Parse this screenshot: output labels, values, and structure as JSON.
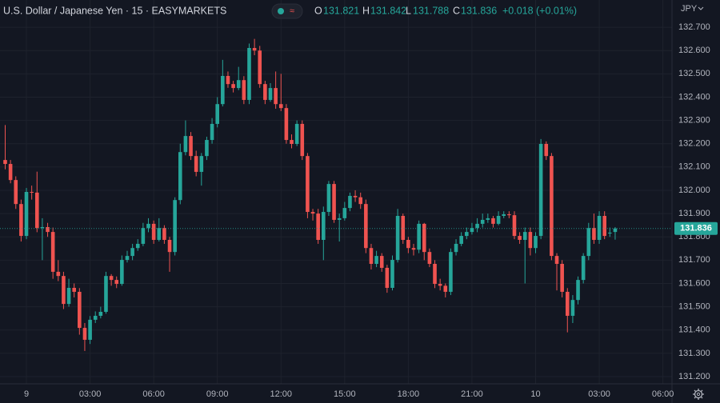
{
  "header": {
    "symbol": "U.S. Dollar / Japanese Yen · 15 · EASYMARKETS",
    "o_label": "O",
    "h_label": "H",
    "l_label": "L",
    "c_label": "C",
    "change": "+0.018",
    "change_pct": "(+0.01%)"
  },
  "chart_data": {
    "type": "candlestick",
    "currency": "JPY",
    "categories": [
      null,
      null,
      null,
      null,
      "9",
      null,
      null,
      null,
      null,
      null,
      null,
      null,
      null,
      null,
      null,
      null,
      "03:00",
      null,
      null,
      null,
      null,
      null,
      null,
      null,
      null,
      null,
      null,
      null,
      "06:00",
      null,
      null,
      null,
      null,
      null,
      null,
      null,
      null,
      null,
      null,
      null,
      "09:00",
      null,
      null,
      null,
      null,
      null,
      null,
      null,
      null,
      null,
      null,
      null,
      "12:00",
      null,
      null,
      null,
      null,
      null,
      null,
      null,
      null,
      null,
      null,
      null,
      "15:00",
      null,
      null,
      null,
      null,
      null,
      null,
      null,
      null,
      null,
      null,
      null,
      "18:00",
      null,
      null,
      null,
      null,
      null,
      null,
      null,
      null,
      null,
      null,
      null,
      "21:00",
      null,
      null,
      null,
      null,
      null,
      null,
      null,
      null,
      null,
      null,
      null,
      "10",
      null,
      null,
      null,
      null,
      null,
      null,
      null,
      null,
      null,
      null,
      null,
      "03:00",
      null,
      null,
      null,
      null,
      null,
      null,
      null,
      null,
      null,
      null,
      null,
      "06:00"
    ],
    "open": [
      132.13,
      132.113,
      132.044,
      131.941,
      131.804,
      131.993,
      131.99,
      131.838,
      131.842,
      131.821,
      131.65,
      131.632,
      131.512,
      131.581,
      131.564,
      131.409,
      131.358,
      131.444,
      131.461,
      131.478,
      131.632,
      131.615,
      131.598,
      131.701,
      131.718,
      131.752,
      131.77,
      131.838,
      131.856,
      131.787,
      131.838,
      131.787,
      131.735,
      131.958,
      132.164,
      132.233,
      132.147,
      132.079,
      132.147,
      132.216,
      132.285,
      132.37,
      132.491,
      132.456,
      132.439,
      132.473,
      132.388,
      132.611,
      132.6,
      132.456,
      132.388,
      132.439,
      132.37,
      132.353,
      132.216,
      132.199,
      132.285,
      132.147,
      131.907,
      131.9,
      131.787,
      131.907,
      132.027,
      131.873,
      131.88,
      131.924,
      131.976,
      131.97,
      131.941,
      131.752,
      131.684,
      131.718,
      131.667,
      131.581,
      131.701,
      131.89,
      131.787,
      131.752,
      131.745,
      131.856,
      131.735,
      131.684,
      131.598,
      131.59,
      131.564,
      131.735,
      131.77,
      131.804,
      131.821,
      131.838,
      131.856,
      131.873,
      131.88,
      131.856,
      131.89,
      131.897,
      131.893,
      131.804,
      131.787,
      131.821,
      131.752,
      131.804,
      132.199,
      132.147,
      131.718,
      131.684,
      131.564,
      131.461,
      131.529,
      131.615,
      131.718,
      131.838,
      131.787,
      131.89,
      131.818,
      131.821,
      null,
      null,
      null,
      null,
      null,
      null,
      null,
      null,
      null
    ],
    "high": [
      132.28,
      132.13,
      132.06,
      131.96,
      132.01,
      132.02,
      132.08,
      131.88,
      131.86,
      131.84,
      131.7,
      131.65,
      131.62,
      131.6,
      131.58,
      131.43,
      131.46,
      131.48,
      131.5,
      131.65,
      131.64,
      131.63,
      131.72,
      131.74,
      131.77,
      131.79,
      131.86,
      131.88,
      131.87,
      131.88,
      131.85,
      131.8,
      131.97,
      132.2,
      132.3,
      132.25,
      132.17,
      132.16,
      132.23,
      132.31,
      132.4,
      132.56,
      132.51,
      132.47,
      132.53,
      132.49,
      132.63,
      132.65,
      132.62,
      132.47,
      132.46,
      132.51,
      132.5,
      132.37,
      132.24,
      132.3,
      132.3,
      132.16,
      131.92,
      131.92,
      131.93,
      132.04,
      132.04,
      131.9,
      131.95,
      131.99,
      132.0,
      131.99,
      131.96,
      131.77,
      131.74,
      131.73,
      131.68,
      131.72,
      131.92,
      131.9,
      131.8,
      131.77,
      131.87,
      131.86,
      131.75,
      131.7,
      131.62,
      131.6,
      131.75,
      131.79,
      131.82,
      131.84,
      131.86,
      131.88,
      131.9,
      131.9,
      131.89,
      131.91,
      131.91,
      131.91,
      131.91,
      131.82,
      131.84,
      131.84,
      131.82,
      132.22,
      132.21,
      132.16,
      131.73,
      131.7,
      131.58,
      131.55,
      131.63,
      131.73,
      131.86,
      131.9,
      131.91,
      131.91,
      131.84,
      131.842,
      null,
      null,
      null,
      null,
      null,
      null,
      null,
      null,
      null
    ],
    "low": [
      132.09,
      132.03,
      131.92,
      131.78,
      131.79,
      131.96,
      131.82,
      131.7,
      131.8,
      131.62,
      131.61,
      131.49,
      131.5,
      131.54,
      131.38,
      131.31,
      131.34,
      131.43,
      131.45,
      131.47,
      131.59,
      131.58,
      131.59,
      131.69,
      131.7,
      131.74,
      131.76,
      131.82,
      131.77,
      131.78,
      131.77,
      131.65,
      131.72,
      131.94,
      132.15,
      132.13,
      132.06,
      132.02,
      132.13,
      132.2,
      132.27,
      132.36,
      132.44,
      132.42,
      132.43,
      132.37,
      132.37,
      132.58,
      132.44,
      132.37,
      132.38,
      132.35,
      132.34,
      132.2,
      132.18,
      132.19,
      132.13,
      131.88,
      131.87,
      131.77,
      131.7,
      131.89,
      131.86,
      131.78,
      131.87,
      131.91,
      131.95,
      131.92,
      131.73,
      131.66,
      131.67,
      131.65,
      131.56,
      131.57,
      131.69,
      131.77,
      131.73,
      131.72,
      131.73,
      131.7,
      131.67,
      131.58,
      131.57,
      131.54,
      131.55,
      131.72,
      131.76,
      131.79,
      131.81,
      131.82,
      131.84,
      131.86,
      131.84,
      131.85,
      131.88,
      131.88,
      131.79,
      131.77,
      131.6,
      131.72,
      131.73,
      131.79,
      132.13,
      131.7,
      131.57,
      131.54,
      131.39,
      131.43,
      131.51,
      131.6,
      131.7,
      131.77,
      131.77,
      131.79,
      131.8,
      131.788,
      null,
      null,
      null,
      null,
      null,
      null,
      null,
      null,
      null
    ],
    "close": [
      132.113,
      132.044,
      131.941,
      131.804,
      131.993,
      131.99,
      131.838,
      131.842,
      131.821,
      131.65,
      131.632,
      131.512,
      131.581,
      131.564,
      131.409,
      131.358,
      131.444,
      131.461,
      131.478,
      131.632,
      131.615,
      131.598,
      131.701,
      131.718,
      131.752,
      131.77,
      131.838,
      131.856,
      131.787,
      131.838,
      131.787,
      131.735,
      131.958,
      132.164,
      132.233,
      132.147,
      132.079,
      132.147,
      132.216,
      132.285,
      132.37,
      132.491,
      132.456,
      132.439,
      132.473,
      132.388,
      132.611,
      132.6,
      132.456,
      132.388,
      132.439,
      132.37,
      132.353,
      132.216,
      132.199,
      132.285,
      132.147,
      131.907,
      131.9,
      131.787,
      131.907,
      132.027,
      131.873,
      131.88,
      131.924,
      131.976,
      131.97,
      131.941,
      131.752,
      131.684,
      131.718,
      131.667,
      131.581,
      131.701,
      131.89,
      131.787,
      131.752,
      131.745,
      131.856,
      131.735,
      131.684,
      131.598,
      131.59,
      131.564,
      131.735,
      131.77,
      131.804,
      131.821,
      131.838,
      131.856,
      131.873,
      131.88,
      131.856,
      131.89,
      131.897,
      131.893,
      131.804,
      131.787,
      131.821,
      131.752,
      131.804,
      132.199,
      132.147,
      131.718,
      131.684,
      131.564,
      131.461,
      131.529,
      131.615,
      131.718,
      131.838,
      131.787,
      131.89,
      131.804,
      131.818,
      131.836,
      null,
      null,
      null,
      null,
      null,
      null,
      null,
      null,
      null
    ],
    "up_color": "#26a69a",
    "down_color": "#ef5350",
    "ylim": [
      131.169,
      132.817
    ],
    "yticks": [
      {
        "value": 131.2,
        "label": "131.200"
      },
      {
        "value": 131.3,
        "label": "131.300"
      },
      {
        "value": 131.4,
        "label": "131.400"
      },
      {
        "value": 131.5,
        "label": "131.500"
      },
      {
        "value": 131.6,
        "label": "131.600"
      },
      {
        "value": 131.7,
        "label": "131.700"
      },
      {
        "value": 131.8,
        "label": "131.800"
      },
      {
        "value": 131.9,
        "label": "131.900"
      },
      {
        "value": 132.0,
        "label": "132.000"
      },
      {
        "value": 132.1,
        "label": "132.100"
      },
      {
        "value": 132.2,
        "label": "132.200"
      },
      {
        "value": 132.3,
        "label": "132.300"
      },
      {
        "value": 132.4,
        "label": "132.400"
      },
      {
        "value": 132.5,
        "label": "132.500"
      },
      {
        "value": 132.6,
        "label": "132.600"
      },
      {
        "value": 132.7,
        "label": "132.700"
      }
    ],
    "grid": true
  }
}
